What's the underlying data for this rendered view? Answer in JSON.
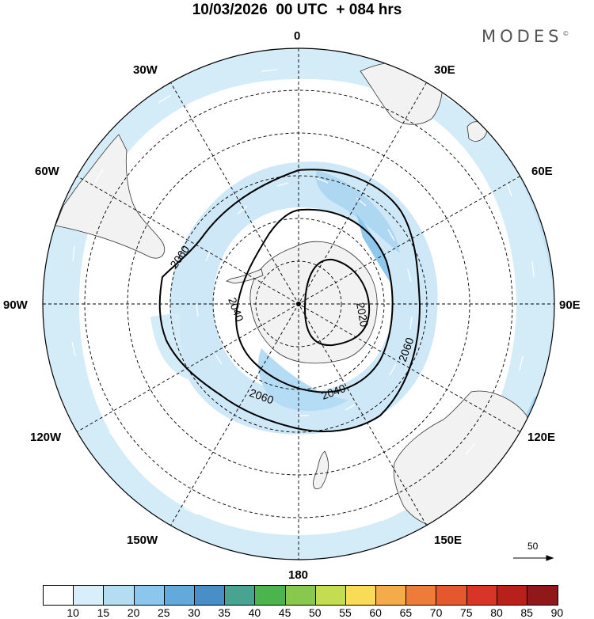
{
  "title": "10/03/2026  00 UTC  + 084 hrs",
  "brand": {
    "name": "MODES",
    "mark": "©"
  },
  "longitude_labels": {
    "lon_0": "0",
    "lon_30e": "30E",
    "lon_60e": "60E",
    "lon_90e": "90E",
    "lon_120e": "120E",
    "lon_150e": "150E",
    "lon_180": "180",
    "lon_150w": "150W",
    "lon_120w": "120W",
    "lon_90w": "90W",
    "lon_60w": "60W",
    "lon_30w": "30W"
  },
  "contour_labels": {
    "c2020": "2020",
    "c2040a": "2040",
    "c2040b": "2040",
    "c2060a": "2060",
    "c2060b": "2060",
    "c2060c": "2060"
  },
  "vector_reference": "50",
  "colorbar": {
    "ticks": [
      "10",
      "15",
      "20",
      "25",
      "30",
      "35",
      "40",
      "45",
      "50",
      "55",
      "60",
      "65",
      "70",
      "75",
      "80",
      "85",
      "90"
    ],
    "colors": [
      "#ffffff",
      "#d8eefa",
      "#b4ddf4",
      "#8cc6ec",
      "#64a9dc",
      "#4a8ec8",
      "#48a490",
      "#4cb44c",
      "#88c84c",
      "#c4dc50",
      "#f8dc58",
      "#f4ac48",
      "#ec7c38",
      "#e45830",
      "#d83428",
      "#b8201c",
      "#901818"
    ]
  }
}
